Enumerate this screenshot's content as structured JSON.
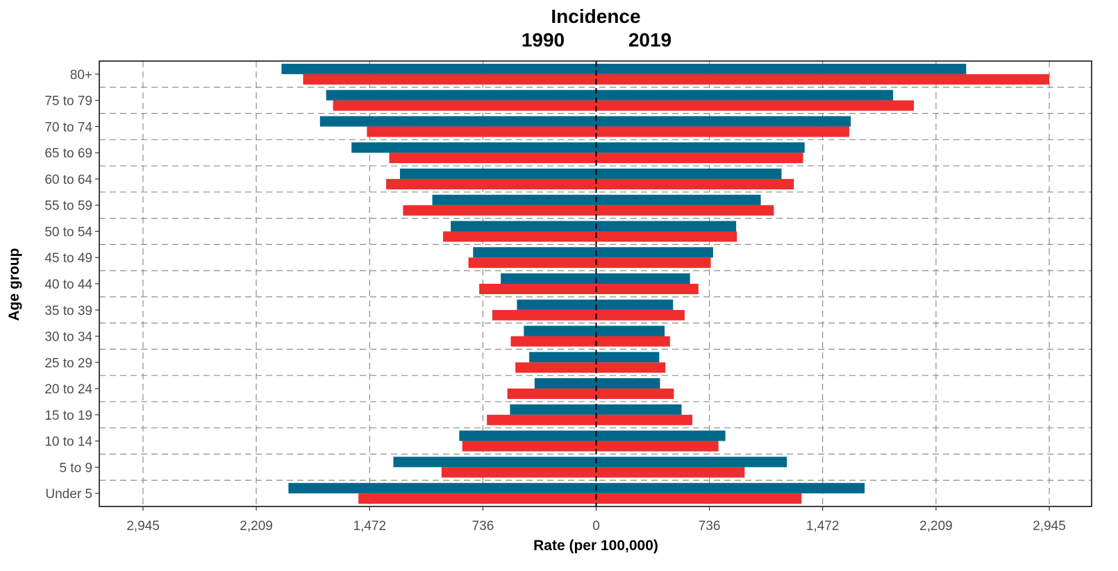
{
  "chart_data": {
    "type": "bar",
    "orientation": "horizontal-butterfly",
    "title": "Incidence",
    "subtitles": {
      "left": "1990",
      "right": "2019"
    },
    "xlabel": "Rate (per 100,000)",
    "ylabel": "Age group",
    "xlim": [
      -3150,
      3150
    ],
    "xticks": [
      -2945,
      -2209,
      -1472,
      -736,
      0,
      736,
      1472,
      2209,
      2945
    ],
    "xtick_labels": [
      "2,945",
      "2,209",
      "1,472",
      "736",
      "0",
      "736",
      "1,472",
      "2,209",
      "2,945"
    ],
    "grid": true,
    "categories": [
      "80+",
      "75 to 79",
      "70 to 74",
      "65 to 69",
      "60 to 64",
      "55 to 59",
      "50 to 54",
      "45 to 49",
      "40 to 44",
      "35 to 39",
      "30 to 34",
      "25 to 29",
      "20 to 24",
      "15 to 19",
      "10 to 14",
      "5 to 9",
      "Under 5"
    ],
    "series": [
      {
        "color": "#00688b",
        "side": "1990",
        "values": [
          2045,
          1755,
          1795,
          1590,
          1275,
          1065,
          945,
          800,
          620,
          515,
          470,
          435,
          400,
          560,
          890,
          1318,
          2000
        ]
      },
      {
        "color": "#ef2d2d",
        "side": "1990",
        "values": [
          1905,
          1710,
          1490,
          1345,
          1365,
          1255,
          995,
          830,
          760,
          675,
          555,
          525,
          577,
          710,
          870,
          1005,
          1545
        ]
      },
      {
        "color": "#00688b",
        "side": "2019",
        "values": [
          2405,
          1930,
          1655,
          1355,
          1205,
          1070,
          910,
          760,
          610,
          500,
          445,
          410,
          415,
          555,
          840,
          1240,
          1745
        ]
      },
      {
        "color": "#ef2d2d",
        "side": "2019",
        "values": [
          2945,
          2065,
          1645,
          1345,
          1285,
          1155,
          915,
          745,
          665,
          575,
          480,
          450,
          505,
          625,
          795,
          965,
          1335
        ]
      }
    ]
  }
}
